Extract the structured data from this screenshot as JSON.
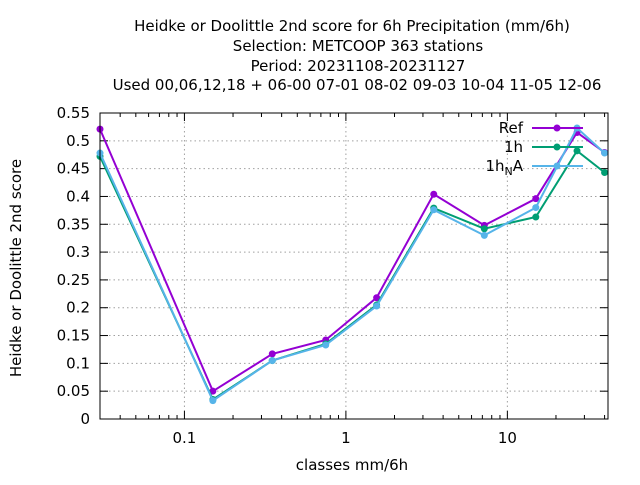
{
  "chart_data": {
    "type": "line",
    "title_lines": [
      "Heidke or Doolittle 2nd score  for 6h Precipitation (mm/6h)",
      "Selection: METCOOP    363 stations",
      "Period: 20231108-20231127",
      "Used  00,06,12,18 + 06-00 07-01 08-02 09-03 10-04 11-05 12-06"
    ],
    "xlabel": "classes mm/6h",
    "ylabel": "Heidke or Doolittle 2nd score",
    "x_scale": "log",
    "xlim": [
      0.03,
      42
    ],
    "ylim": [
      0,
      0.55
    ],
    "x_ticks": [
      0.1,
      1,
      10
    ],
    "x_tick_labels": [
      "0.1",
      "1",
      "10"
    ],
    "y_ticks": [
      0,
      0.05,
      0.1,
      0.15,
      0.2,
      0.25,
      0.3,
      0.35,
      0.4,
      0.45,
      0.5,
      0.55
    ],
    "y_tick_labels": [
      "0",
      "0.05",
      "0.1",
      "0.15",
      "0.2",
      "0.25",
      "0.3",
      "0.35",
      "0.4",
      "0.45",
      "0.5",
      "0.55"
    ],
    "grid": true,
    "legend_position": "top-right",
    "series": [
      {
        "name": "Ref",
        "color": "#9400d3",
        "x": [
          0.03,
          0.15,
          0.35,
          0.75,
          1.55,
          3.5,
          7.2,
          15,
          27,
          40
        ],
        "y": [
          0.521,
          0.05,
          0.117,
          0.142,
          0.218,
          0.404,
          0.348,
          0.396,
          0.515,
          0.479
        ]
      },
      {
        "name": "1h",
        "color": "#009e73",
        "x": [
          0.03,
          0.15,
          0.35,
          0.75,
          1.55,
          3.5,
          7.2,
          15,
          27,
          40
        ],
        "y": [
          0.472,
          0.035,
          0.105,
          0.135,
          0.205,
          0.379,
          0.342,
          0.363,
          0.482,
          0.443
        ]
      },
      {
        "name": "1h",
        "name_subscript": "N",
        "name_suffix": "A",
        "color": "#56b4e9",
        "x": [
          0.03,
          0.15,
          0.35,
          0.75,
          1.55,
          3.5,
          7.2,
          15,
          27,
          40
        ],
        "y": [
          0.478,
          0.033,
          0.105,
          0.133,
          0.203,
          0.376,
          0.33,
          0.38,
          0.523,
          0.478
        ]
      }
    ]
  }
}
